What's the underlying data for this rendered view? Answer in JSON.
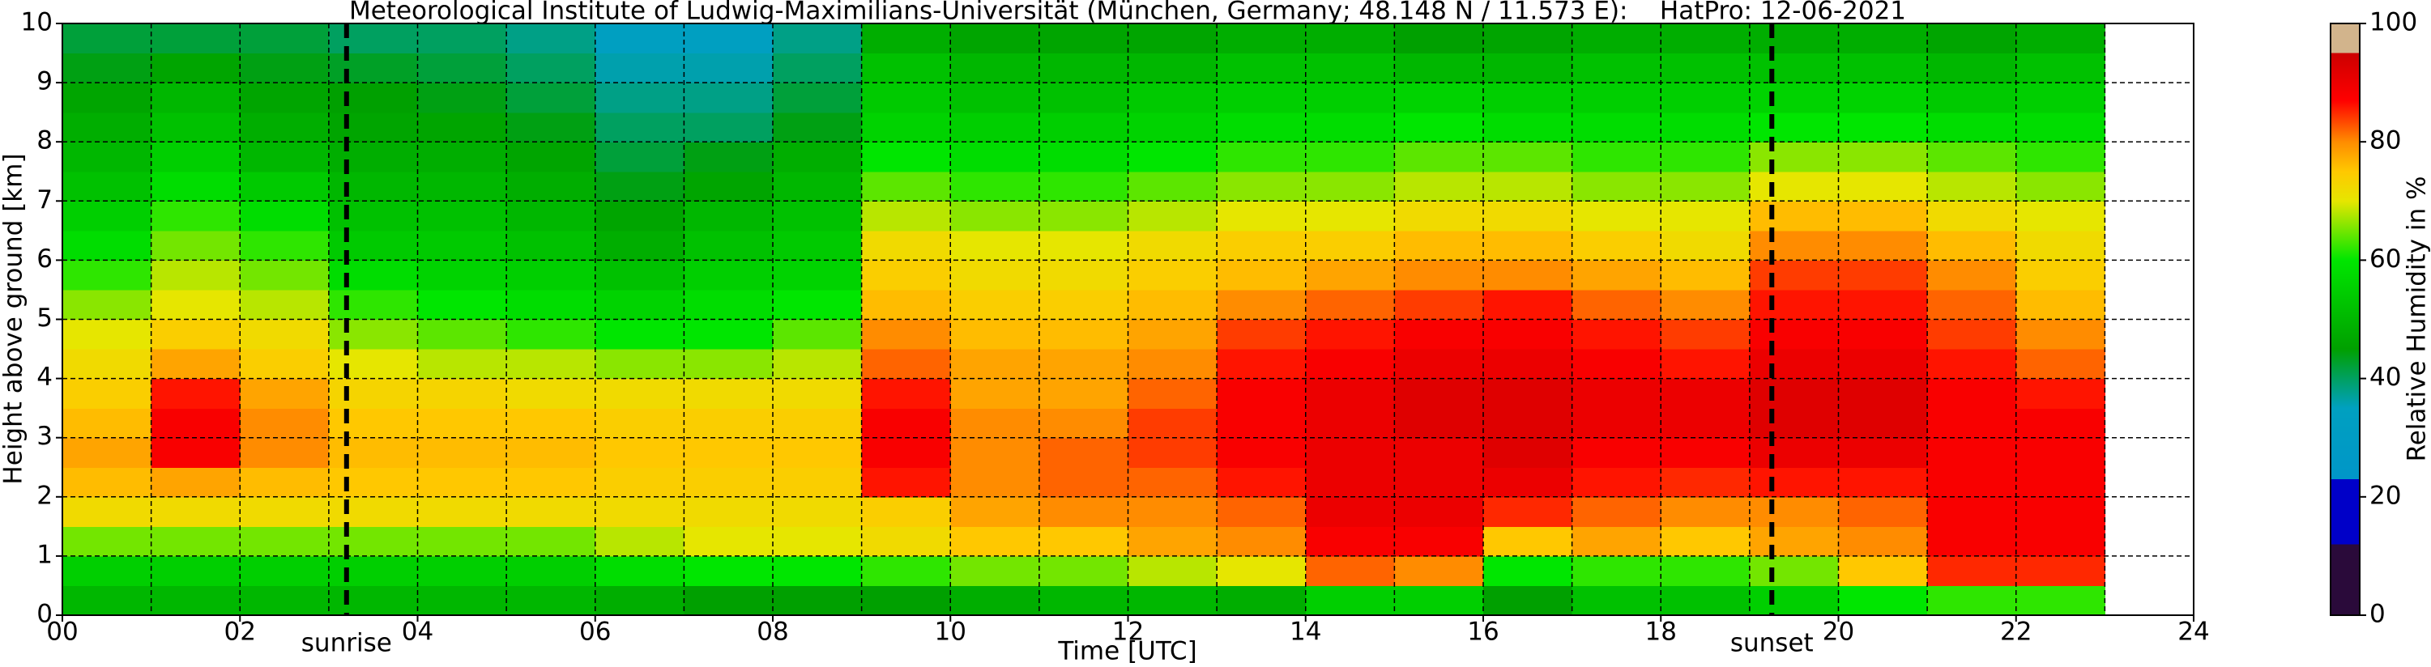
{
  "chart_data": {
    "type": "heatmap",
    "title": "Meteorological Institute of Ludwig-Maximilians-Universität (München, Germany; 48.148 N / 11.573 E):    HatPro: 12-06-2021",
    "xlabel": "Time [UTC]",
    "ylabel": "Height above ground [km]",
    "colorbar_label": "Relative Humidity in %",
    "x": [
      0,
      1,
      2,
      3,
      4,
      5,
      6,
      7,
      8,
      9,
      10,
      11,
      12,
      13,
      14,
      15,
      16,
      17,
      18,
      19,
      20,
      21,
      22,
      23
    ],
    "y": [
      0,
      0.5,
      1,
      1.5,
      2,
      2.5,
      3,
      3.5,
      4,
      4.5,
      5,
      5.5,
      6,
      6.5,
      7,
      7.5,
      8,
      8.5,
      9,
      9.5,
      10
    ],
    "z": [
      [
        50,
        50,
        50,
        50,
        50,
        50,
        48,
        45,
        45,
        45,
        48,
        50,
        50,
        48,
        55,
        55,
        45,
        52,
        52,
        55,
        60,
        62,
        62
      ],
      [
        55,
        55,
        55,
        55,
        55,
        55,
        58,
        60,
        60,
        62,
        65,
        65,
        68,
        70,
        82,
        80,
        60,
        62,
        62,
        65,
        75,
        85,
        85
      ],
      [
        65,
        65,
        65,
        65,
        65,
        65,
        68,
        70,
        70,
        72,
        75,
        75,
        78,
        80,
        88,
        88,
        75,
        78,
        75,
        78,
        80,
        88,
        88
      ],
      [
        72,
        72,
        72,
        72,
        72,
        72,
        72,
        72,
        72,
        74,
        78,
        80,
        80,
        82,
        90,
        90,
        85,
        82,
        80,
        80,
        82,
        88,
        88
      ],
      [
        76,
        78,
        76,
        75,
        75,
        75,
        74,
        74,
        74,
        86,
        80,
        82,
        82,
        86,
        90,
        90,
        90,
        86,
        85,
        86,
        86,
        88,
        88
      ],
      [
        78,
        88,
        80,
        76,
        76,
        76,
        75,
        75,
        75,
        88,
        80,
        82,
        84,
        88,
        90,
        90,
        92,
        88,
        88,
        90,
        90,
        88,
        88
      ],
      [
        76,
        88,
        80,
        75,
        75,
        75,
        74,
        74,
        74,
        88,
        80,
        80,
        84,
        88,
        90,
        92,
        92,
        90,
        90,
        92,
        92,
        88,
        88
      ],
      [
        74,
        86,
        78,
        73,
        73,
        72,
        72,
        72,
        72,
        86,
        78,
        78,
        82,
        88,
        90,
        92,
        92,
        90,
        90,
        92,
        92,
        88,
        86
      ],
      [
        72,
        78,
        74,
        70,
        68,
        68,
        66,
        66,
        68,
        82,
        78,
        78,
        80,
        86,
        88,
        90,
        90,
        88,
        86,
        90,
        90,
        86,
        82
      ],
      [
        70,
        74,
        72,
        66,
        64,
        62,
        60,
        60,
        64,
        80,
        76,
        76,
        78,
        84,
        86,
        88,
        88,
        86,
        84,
        88,
        88,
        84,
        80
      ],
      [
        66,
        70,
        68,
        62,
        60,
        58,
        56,
        58,
        60,
        76,
        74,
        74,
        76,
        80,
        82,
        84,
        86,
        82,
        80,
        86,
        86,
        82,
        76
      ],
      [
        62,
        68,
        65,
        58,
        56,
        55,
        52,
        55,
        56,
        74,
        72,
        72,
        74,
        76,
        78,
        80,
        80,
        78,
        76,
        84,
        84,
        80,
        74
      ],
      [
        58,
        65,
        62,
        54,
        54,
        52,
        48,
        52,
        54,
        72,
        70,
        70,
        72,
        74,
        74,
        76,
        76,
        74,
        72,
        80,
        80,
        76,
        72
      ],
      [
        55,
        62,
        58,
        52,
        52,
        50,
        46,
        50,
        52,
        68,
        66,
        66,
        68,
        70,
        70,
        72,
        72,
        70,
        70,
        76,
        76,
        72,
        70
      ],
      [
        52,
        58,
        54,
        50,
        50,
        48,
        44,
        46,
        50,
        64,
        62,
        62,
        64,
        66,
        66,
        68,
        68,
        66,
        66,
        70,
        70,
        68,
        66
      ],
      [
        50,
        55,
        50,
        48,
        48,
        46,
        42,
        44,
        48,
        60,
        58,
        58,
        60,
        62,
        62,
        64,
        64,
        62,
        62,
        66,
        66,
        64,
        62
      ],
      [
        48,
        52,
        48,
        46,
        46,
        44,
        40,
        40,
        44,
        56,
        55,
        55,
        56,
        58,
        58,
        60,
        58,
        58,
        58,
        60,
        60,
        58,
        58
      ],
      [
        46,
        50,
        46,
        45,
        44,
        42,
        38,
        38,
        42,
        54,
        52,
        52,
        54,
        55,
        55,
        56,
        55,
        55,
        55,
        56,
        56,
        54,
        55
      ],
      [
        44,
        46,
        44,
        43,
        42,
        40,
        36,
        36,
        40,
        52,
        50,
        50,
        50,
        52,
        52,
        50,
        50,
        52,
        52,
        52,
        52,
        50,
        52
      ],
      [
        42,
        42,
        42,
        40,
        40,
        38,
        34,
        34,
        38,
        48,
        46,
        46,
        46,
        48,
        48,
        45,
        46,
        48,
        48,
        48,
        48,
        46,
        48
      ]
    ],
    "xlim": [
      0,
      24
    ],
    "ylim": [
      0,
      10
    ],
    "xticks": [
      {
        "value": 0,
        "label": "00"
      },
      {
        "value": 2,
        "label": "02"
      },
      {
        "value": 4,
        "label": "04"
      },
      {
        "value": 6,
        "label": "06"
      },
      {
        "value": 8,
        "label": "08"
      },
      10,
      12,
      14,
      16,
      18,
      20,
      22,
      24
    ],
    "xminor": [
      1,
      3,
      5,
      7,
      9,
      11,
      13,
      15,
      17,
      19,
      21,
      23
    ],
    "yticks": [
      0,
      1,
      2,
      3,
      4,
      5,
      6,
      7,
      8,
      9,
      10
    ],
    "grid": true,
    "clim": [
      0,
      100
    ],
    "cticks": [
      0,
      20,
      40,
      60,
      80,
      100
    ],
    "colorscale": [
      [
        0,
        "#2a0a3a"
      ],
      [
        12,
        "#2a0a3a"
      ],
      [
        12,
        "#0000c8"
      ],
      [
        23,
        "#0000c8"
      ],
      [
        23,
        "#0096c8"
      ],
      [
        35,
        "#00a0c0"
      ],
      [
        45,
        "#00a000"
      ],
      [
        60,
        "#00e600"
      ],
      [
        70,
        "#e6e600"
      ],
      [
        75,
        "#ffc800"
      ],
      [
        80,
        "#ff8c00"
      ],
      [
        87,
        "#ff0000"
      ],
      [
        95,
        "#cc0000"
      ],
      [
        95,
        "#d2b48c"
      ],
      [
        100,
        "#d2b48c"
      ]
    ],
    "markers": [
      {
        "label": "sunrise",
        "x": 3.2
      },
      {
        "label": "sunset",
        "x": 19.25
      }
    ]
  }
}
